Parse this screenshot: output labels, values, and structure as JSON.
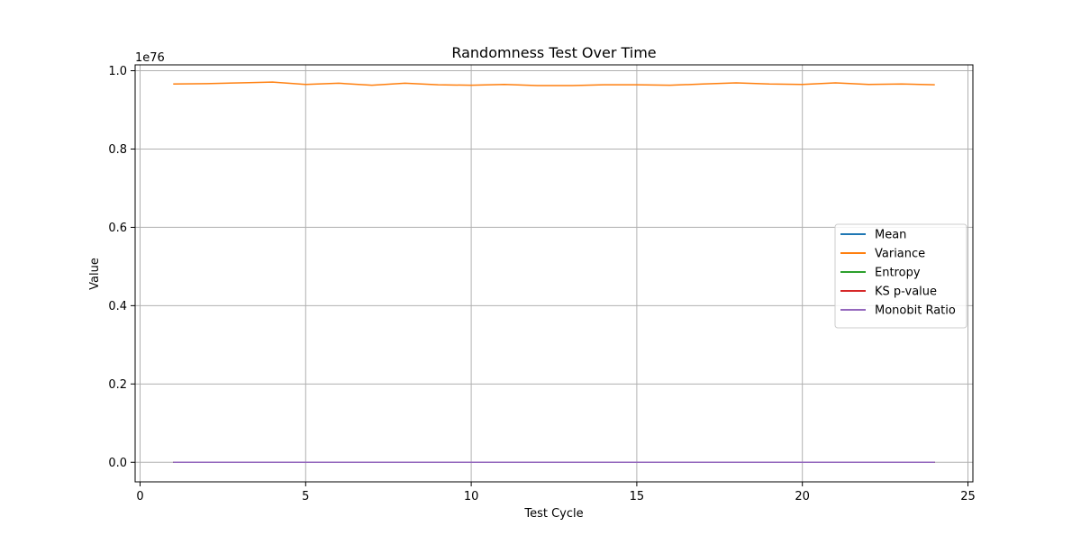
{
  "chart_data": {
    "type": "line",
    "title": "Randomness Test Over Time",
    "xlabel": "Test Cycle",
    "ylabel": "Value",
    "y_offset_label": "1e76",
    "xlim": [
      -0.15,
      25.15
    ],
    "ylim": [
      -0.05,
      1.015
    ],
    "y_scale_note": "y values in units of 1e76",
    "x_ticks": [
      0,
      5,
      10,
      15,
      20,
      25
    ],
    "x_tick_labels": [
      "0",
      "5",
      "10",
      "15",
      "20",
      "25"
    ],
    "y_ticks": [
      0.0,
      0.2,
      0.4,
      0.6,
      0.8,
      1.0
    ],
    "y_tick_labels": [
      "0.0",
      "0.2",
      "0.4",
      "0.6",
      "0.8",
      "1.0"
    ],
    "grid": true,
    "legend_position": "center-right",
    "x": [
      1,
      2,
      3,
      4,
      5,
      6,
      7,
      8,
      9,
      10,
      11,
      12,
      13,
      14,
      15,
      16,
      17,
      18,
      19,
      20,
      21,
      22,
      23,
      24
    ],
    "series": [
      {
        "name": "Mean",
        "color": "#1f77b4",
        "values": [
          0,
          0,
          0,
          0,
          0,
          0,
          0,
          0,
          0,
          0,
          0,
          0,
          0,
          0,
          0,
          0,
          0,
          0,
          0,
          0,
          0,
          0,
          0,
          0
        ]
      },
      {
        "name": "Variance",
        "color": "#ff7f0e",
        "values": [
          0.966,
          0.967,
          0.969,
          0.971,
          0.965,
          0.968,
          0.963,
          0.968,
          0.964,
          0.963,
          0.965,
          0.962,
          0.962,
          0.964,
          0.964,
          0.963,
          0.966,
          0.969,
          0.966,
          0.965,
          0.969,
          0.965,
          0.966,
          0.964
        ]
      },
      {
        "name": "Entropy",
        "color": "#2ca02c",
        "values": [
          0,
          0,
          0,
          0,
          0,
          0,
          0,
          0,
          0,
          0,
          0,
          0,
          0,
          0,
          0,
          0,
          0,
          0,
          0,
          0,
          0,
          0,
          0,
          0
        ]
      },
      {
        "name": "KS p-value",
        "color": "#d62728",
        "values": [
          0,
          0,
          0,
          0,
          0,
          0,
          0,
          0,
          0,
          0,
          0,
          0,
          0,
          0,
          0,
          0,
          0,
          0,
          0,
          0,
          0,
          0,
          0,
          0
        ]
      },
      {
        "name": "Monobit Ratio",
        "color": "#9467bd",
        "values": [
          0,
          0,
          0,
          0,
          0,
          0,
          0,
          0,
          0,
          0,
          0,
          0,
          0,
          0,
          0,
          0,
          0,
          0,
          0,
          0,
          0,
          0,
          0,
          0
        ]
      }
    ]
  }
}
